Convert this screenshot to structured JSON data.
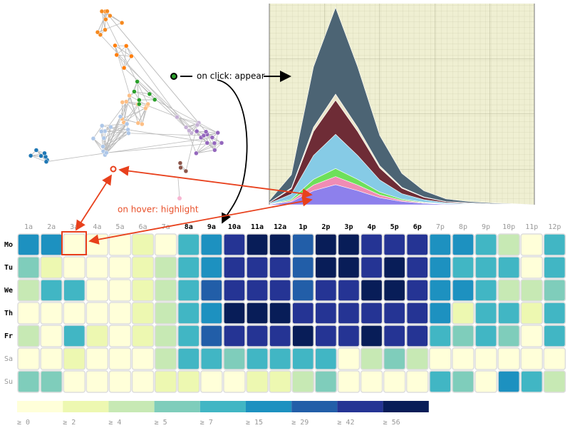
{
  "annotations": {
    "click": "on click: appear",
    "hover": "on hover: highlight"
  },
  "chart_data": [
    {
      "type": "area",
      "stacked": true,
      "x": [
        0,
        1,
        2,
        3,
        4,
        5,
        6,
        7,
        8,
        9,
        10,
        11,
        12
      ],
      "xlim": [
        0,
        12
      ],
      "ylim": [
        0,
        100
      ],
      "series": [
        {
          "color": "#8d80ec",
          "values": [
            0.2,
            1.5,
            7,
            10,
            7,
            3.5,
            1.6,
            0.7,
            0.3,
            0.2,
            0.1,
            0.1,
            0
          ]
        },
        {
          "color": "#f08cb4",
          "values": [
            0.1,
            0.6,
            2.8,
            4,
            2.8,
            1.4,
            0.6,
            0.3,
            0.1,
            0.1,
            0,
            0,
            0
          ]
        },
        {
          "color": "#6ee05a",
          "values": [
            0.1,
            0.6,
            2.8,
            4,
            2.8,
            1.4,
            0.6,
            0.3,
            0.1,
            0.1,
            0,
            0,
            0
          ]
        },
        {
          "color": "#86cbe6",
          "values": [
            0.3,
            2.6,
            11.9,
            17,
            11.9,
            6,
            2.7,
            1.2,
            0.5,
            0.3,
            0.2,
            0.1,
            0
          ]
        },
        {
          "color": "#6e2c36",
          "values": [
            0.3,
            2.6,
            11.9,
            17,
            11.9,
            6,
            2.7,
            1.2,
            0.5,
            0.3,
            0.2,
            0.1,
            0
          ]
        },
        {
          "color": "#ece6cc",
          "values": [
            0.1,
            0.5,
            2.1,
            3,
            2.1,
            1.1,
            0.5,
            0.2,
            0.1,
            0,
            0,
            0,
            0
          ]
        },
        {
          "color": "#4c6474",
          "values": [
            0.9,
            6.5,
            30,
            43,
            30,
            15,
            6.9,
            3,
            1.3,
            0.6,
            0.4,
            0.2,
            0
          ]
        }
      ]
    },
    {
      "type": "heatmap",
      "x": [
        "1a",
        "2a",
        "3a",
        "4a",
        "5a",
        "6a",
        "7a",
        "8a",
        "9a",
        "10a",
        "11a",
        "12a",
        "1p",
        "2p",
        "3p",
        "4p",
        "5p",
        "6p",
        "7p",
        "8p",
        "9p",
        "10p",
        "11p",
        "12p"
      ],
      "y": [
        "Mo",
        "Tu",
        "We",
        "Th",
        "Fr",
        "Sa",
        "Su"
      ],
      "values": [
        [
          15,
          15,
          0,
          0,
          0,
          2,
          0,
          7,
          15,
          42,
          56,
          56,
          29,
          56,
          56,
          42,
          42,
          42,
          15,
          15,
          7,
          4,
          0,
          7
        ],
        [
          5,
          2,
          0,
          0,
          0,
          2,
          4,
          7,
          15,
          42,
          42,
          42,
          29,
          56,
          56,
          42,
          56,
          42,
          15,
          7,
          7,
          7,
          0,
          7
        ],
        [
          4,
          7,
          7,
          0,
          0,
          2,
          4,
          7,
          29,
          42,
          42,
          42,
          29,
          42,
          42,
          56,
          56,
          42,
          15,
          15,
          7,
          4,
          4,
          5
        ],
        [
          0,
          0,
          0,
          0,
          0,
          2,
          4,
          7,
          15,
          56,
          56,
          56,
          42,
          42,
          42,
          42,
          42,
          42,
          15,
          2,
          7,
          7,
          2,
          7
        ],
        [
          4,
          0,
          7,
          2,
          0,
          2,
          4,
          7,
          29,
          42,
          42,
          42,
          56,
          42,
          42,
          56,
          42,
          42,
          7,
          5,
          7,
          5,
          0,
          7
        ],
        [
          0,
          0,
          2,
          0,
          0,
          0,
          4,
          7,
          7,
          5,
          7,
          7,
          7,
          7,
          0,
          4,
          5,
          4,
          0,
          0,
          0,
          0,
          0,
          0
        ],
        [
          5,
          5,
          0,
          0,
          0,
          0,
          2,
          2,
          0,
          0,
          2,
          2,
          4,
          5,
          0,
          0,
          0,
          0,
          7,
          5,
          0,
          15,
          7,
          4
        ]
      ],
      "legend": {
        "ticks": [
          {
            "value": 0,
            "label": "≥ 0"
          },
          {
            "value": 2,
            "label": "≥ 2"
          },
          {
            "value": 4,
            "label": "≥ 4"
          },
          {
            "value": 5,
            "label": "≥ 5"
          },
          {
            "value": 7,
            "label": "≥ 7"
          },
          {
            "value": 15,
            "label": "≥ 15"
          },
          {
            "value": 29,
            "label": "≥ 29"
          },
          {
            "value": 42,
            "label": "≥ 42"
          },
          {
            "value": 56,
            "label": "≥ 56"
          }
        ],
        "colors": [
          "#ffffd9",
          "#edf8b1",
          "#c7e9b4",
          "#7fcdbb",
          "#41b6c4",
          "#1d91c0",
          "#225ea8",
          "#253494",
          "#081d58"
        ]
      }
    }
  ]
}
